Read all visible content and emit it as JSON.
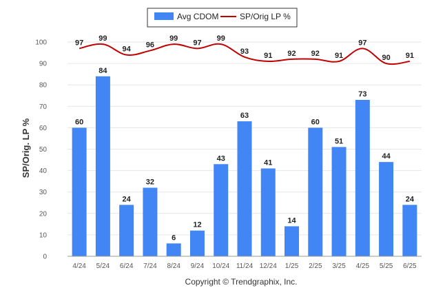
{
  "chart_data": {
    "type": "bar",
    "categories": [
      "4/24",
      "5/24",
      "6/24",
      "7/24",
      "8/24",
      "9/24",
      "10/24",
      "11/24",
      "12/24",
      "1/25",
      "2/25",
      "3/25",
      "4/25",
      "5/25",
      "6/25"
    ],
    "series": [
      {
        "name": "Avg CDOM",
        "type": "bar",
        "color": "#4285f4",
        "values": [
          60,
          84,
          24,
          32,
          6,
          12,
          43,
          63,
          41,
          14,
          60,
          51,
          73,
          44,
          24
        ]
      },
      {
        "name": "SP/Orig LP %",
        "type": "line",
        "color": "#c00000",
        "values": [
          97,
          99,
          94,
          96,
          99,
          97,
          99,
          93,
          91,
          92,
          92,
          91,
          97,
          90,
          91
        ]
      }
    ],
    "ylabel": "SP/Orig. LP %",
    "xlabel": "",
    "ylim": [
      0,
      100
    ],
    "yticks": [
      0,
      10,
      20,
      30,
      40,
      50,
      60,
      70,
      80,
      90,
      100
    ],
    "grid": true,
    "legend_position": "top-center"
  },
  "footer": "Copyright © Trendgraphix, Inc."
}
